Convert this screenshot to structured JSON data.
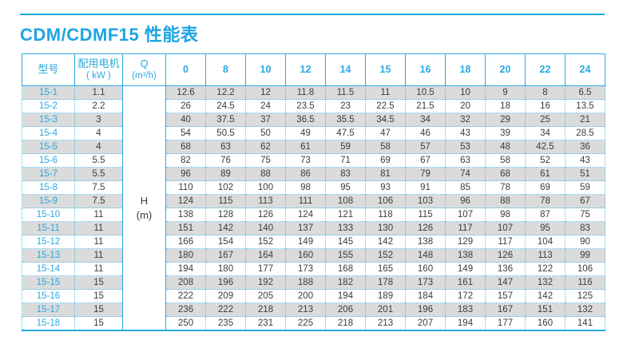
{
  "title": "CDM/CDMF15 性能表",
  "colors": {
    "accent": "#2aa9e2",
    "stripe": "#dbdbdb",
    "data_text": "#3c3c3c"
  },
  "table": {
    "headers": {
      "model": "型号",
      "motor_line1": "配用电机",
      "motor_line2": "( kW )",
      "q_line1": "Q",
      "q_line2": "(m³/h)",
      "flow_columns": [
        "0",
        "8",
        "10",
        "12",
        "14",
        "15",
        "16",
        "18",
        "20",
        "22",
        "24"
      ]
    },
    "h_label": {
      "line1": "H",
      "line2": "(m)"
    },
    "rows": [
      {
        "model": "15-1",
        "motor": "1.1",
        "values": [
          "12.6",
          "12.2",
          "12",
          "11.8",
          "11.5",
          "11",
          "10.5",
          "10",
          "9",
          "8",
          "6.5"
        ]
      },
      {
        "model": "15-2",
        "motor": "2.2",
        "values": [
          "26",
          "24.5",
          "24",
          "23.5",
          "23",
          "22.5",
          "21.5",
          "20",
          "18",
          "16",
          "13.5"
        ]
      },
      {
        "model": "15-3",
        "motor": "3",
        "values": [
          "40",
          "37.5",
          "37",
          "36.5",
          "35.5",
          "34.5",
          "34",
          "32",
          "29",
          "25",
          "21"
        ]
      },
      {
        "model": "15-4",
        "motor": "4",
        "values": [
          "54",
          "50.5",
          "50",
          "49",
          "47.5",
          "47",
          "46",
          "43",
          "39",
          "34",
          "28.5"
        ]
      },
      {
        "model": "15-5",
        "motor": "4",
        "values": [
          "68",
          "63",
          "62",
          "61",
          "59",
          "58",
          "57",
          "53",
          "48",
          "42.5",
          "36"
        ]
      },
      {
        "model": "15-6",
        "motor": "5.5",
        "values": [
          "82",
          "76",
          "75",
          "73",
          "71",
          "69",
          "67",
          "63",
          "58",
          "52",
          "43"
        ]
      },
      {
        "model": "15-7",
        "motor": "5.5",
        "values": [
          "96",
          "89",
          "88",
          "86",
          "83",
          "81",
          "79",
          "74",
          "68",
          "61",
          "51"
        ]
      },
      {
        "model": "15-8",
        "motor": "7.5",
        "values": [
          "110",
          "102",
          "100",
          "98",
          "95",
          "93",
          "91",
          "85",
          "78",
          "69",
          "59"
        ]
      },
      {
        "model": "15-9",
        "motor": "7.5",
        "values": [
          "124",
          "115",
          "113",
          "111",
          "108",
          "106",
          "103",
          "96",
          "88",
          "78",
          "67"
        ]
      },
      {
        "model": "15-10",
        "motor": "11",
        "values": [
          "138",
          "128",
          "126",
          "124",
          "121",
          "118",
          "115",
          "107",
          "98",
          "87",
          "75"
        ]
      },
      {
        "model": "15-11",
        "motor": "11",
        "values": [
          "151",
          "142",
          "140",
          "137",
          "133",
          "130",
          "126",
          "117",
          "107",
          "95",
          "83"
        ]
      },
      {
        "model": "15-12",
        "motor": "11",
        "values": [
          "166",
          "154",
          "152",
          "149",
          "145",
          "142",
          "138",
          "129",
          "117",
          "104",
          "90"
        ]
      },
      {
        "model": "15-13",
        "motor": "11",
        "values": [
          "180",
          "167",
          "164",
          "160",
          "155",
          "152",
          "148",
          "138",
          "126",
          "113",
          "99"
        ]
      },
      {
        "model": "15-14",
        "motor": "11",
        "values": [
          "194",
          "180",
          "177",
          "173",
          "168",
          "165",
          "160",
          "149",
          "136",
          "122",
          "106"
        ]
      },
      {
        "model": "15-15",
        "motor": "15",
        "values": [
          "208",
          "196",
          "192",
          "188",
          "182",
          "178",
          "173",
          "161",
          "147",
          "132",
          "116"
        ]
      },
      {
        "model": "15-16",
        "motor": "15",
        "values": [
          "222",
          "209",
          "205",
          "200",
          "194",
          "189",
          "184",
          "172",
          "157",
          "142",
          "125"
        ]
      },
      {
        "model": "15-17",
        "motor": "15",
        "values": [
          "236",
          "222",
          "218",
          "213",
          "206",
          "201",
          "196",
          "183",
          "167",
          "151",
          "132"
        ]
      },
      {
        "model": "15-18",
        "motor": "15",
        "values": [
          "250",
          "235",
          "231",
          "225",
          "218",
          "213",
          "207",
          "194",
          "177",
          "160",
          "141"
        ]
      }
    ]
  }
}
